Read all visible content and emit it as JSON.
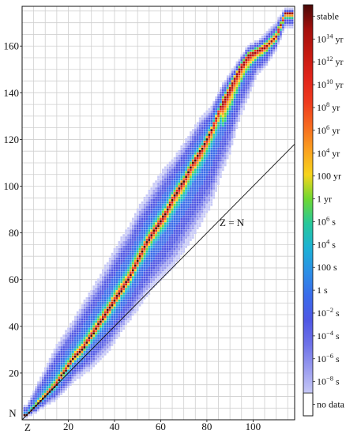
{
  "chart_data": {
    "type": "heatmap",
    "title": "",
    "xlabel": "Z",
    "ylabel": "N",
    "xlim": [
      0,
      118
    ],
    "ylim": [
      0,
      177
    ],
    "x_ticks": [
      20,
      40,
      60,
      80,
      100
    ],
    "y_ticks": [
      20,
      40,
      60,
      80,
      100,
      120,
      140,
      160
    ],
    "grid": true,
    "diagonal_label": "Z = N",
    "nuclide_band": [
      {
        "z": 2,
        "n_min": 1,
        "n_max": 6,
        "stable_n": 2
      },
      {
        "z": 6,
        "n_min": 3,
        "n_max": 14,
        "stable_n": 6
      },
      {
        "z": 10,
        "n_min": 6,
        "n_max": 22,
        "stable_n": 10
      },
      {
        "z": 14,
        "n_min": 8,
        "n_max": 30,
        "stable_n": 14
      },
      {
        "z": 18,
        "n_min": 12,
        "n_max": 36,
        "stable_n": 20
      },
      {
        "z": 22,
        "n_min": 16,
        "n_max": 42,
        "stable_n": 26
      },
      {
        "z": 26,
        "n_min": 19,
        "n_max": 49,
        "stable_n": 30
      },
      {
        "z": 30,
        "n_min": 22,
        "n_max": 55,
        "stable_n": 36
      },
      {
        "z": 34,
        "n_min": 26,
        "n_max": 62,
        "stable_n": 42
      },
      {
        "z": 38,
        "n_min": 30,
        "n_max": 69,
        "stable_n": 48
      },
      {
        "z": 42,
        "n_min": 36,
        "n_max": 76,
        "stable_n": 54
      },
      {
        "z": 46,
        "n_min": 42,
        "n_max": 82,
        "stable_n": 60
      },
      {
        "z": 50,
        "n_min": 47,
        "n_max": 90,
        "stable_n": 68
      },
      {
        "z": 54,
        "n_min": 53,
        "n_max": 96,
        "stable_n": 76
      },
      {
        "z": 58,
        "n_min": 58,
        "n_max": 102,
        "stable_n": 82
      },
      {
        "z": 62,
        "n_min": 62,
        "n_max": 108,
        "stable_n": 88
      },
      {
        "z": 66,
        "n_min": 66,
        "n_max": 112,
        "stable_n": 96
      },
      {
        "z": 70,
        "n_min": 72,
        "n_max": 118,
        "stable_n": 102
      },
      {
        "z": 74,
        "n_min": 78,
        "n_max": 124,
        "stable_n": 110
      },
      {
        "z": 78,
        "n_min": 85,
        "n_max": 130,
        "stable_n": 116
      },
      {
        "z": 82,
        "n_min": 92,
        "n_max": 134,
        "stable_n": 124
      },
      {
        "z": 86,
        "n_min": 104,
        "n_max": 142,
        "stable_n": 134
      },
      {
        "z": 90,
        "n_min": 114,
        "n_max": 148,
        "stable_n": 142
      },
      {
        "z": 94,
        "n_min": 128,
        "n_max": 154,
        "stable_n": 150
      },
      {
        "z": 98,
        "n_min": 138,
        "n_max": 160,
        "stable_n": 156
      },
      {
        "z": 102,
        "n_min": 148,
        "n_max": 162,
        "stable_n": 158
      },
      {
        "z": 106,
        "n_min": 152,
        "n_max": 166,
        "stable_n": 160
      },
      {
        "z": 110,
        "n_min": 158,
        "n_max": 170,
        "stable_n": 164
      },
      {
        "z": 114,
        "n_min": 168,
        "n_max": 176,
        "stable_n": 174
      }
    ],
    "colorbar": {
      "labels": [
        {
          "base": "stable",
          "exp": "",
          "unit": "",
          "color": "#4a0a08"
        },
        {
          "base": "10",
          "exp": "14",
          "unit": " yr",
          "color": "#a30f0c"
        },
        {
          "base": "10",
          "exp": "12",
          "unit": " yr",
          "color": "#c41910"
        },
        {
          "base": "10",
          "exp": "10",
          "unit": " yr",
          "color": "#e0241a"
        },
        {
          "base": "10",
          "exp": "8",
          "unit": " yr",
          "color": "#ee3a1e"
        },
        {
          "base": "10",
          "exp": "6",
          "unit": " yr",
          "color": "#f66a1f"
        },
        {
          "base": "10",
          "exp": "4",
          "unit": " yr",
          "color": "#faa11f"
        },
        {
          "base": "100 yr",
          "exp": "",
          "unit": "",
          "color": "#f6d41c"
        },
        {
          "base": "1 yr",
          "exp": "",
          "unit": "",
          "color": "#6fd832"
        },
        {
          "base": "10",
          "exp": "6",
          "unit": " s",
          "color": "#27c89a"
        },
        {
          "base": "10",
          "exp": "4",
          "unit": " s",
          "color": "#1cb2d4"
        },
        {
          "base": "100 s",
          "exp": "",
          "unit": "",
          "color": "#2c8fe6"
        },
        {
          "base": "1 s",
          "exp": "",
          "unit": "",
          "color": "#3a6bea"
        },
        {
          "base": "10",
          "exp": "−2",
          "unit": " s",
          "color": "#4f57e4"
        },
        {
          "base": "10",
          "exp": "−4",
          "unit": " s",
          "color": "#6e72e8"
        },
        {
          "base": "10",
          "exp": "−6",
          "unit": " s",
          "color": "#9a9cef"
        },
        {
          "base": "10",
          "exp": "−8",
          "unit": " s",
          "color": "#c6c8f6"
        },
        {
          "base": "no data",
          "exp": "",
          "unit": "",
          "color": "#ffffff"
        }
      ]
    }
  }
}
